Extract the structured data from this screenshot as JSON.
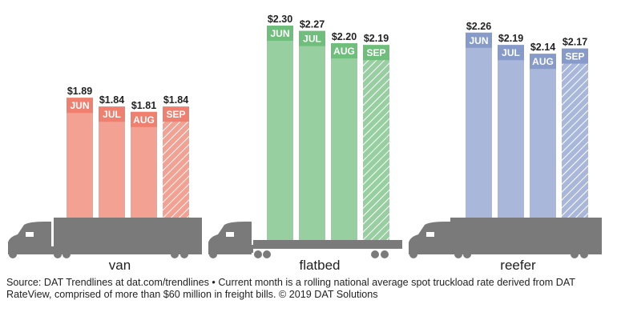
{
  "chart_data": {
    "type": "bar",
    "categories": [
      "JUN",
      "JUL",
      "AUG",
      "SEP"
    ],
    "series": [
      {
        "name": "van",
        "values": [
          1.89,
          1.84,
          1.81,
          1.84
        ],
        "labels": [
          "$1.89",
          "$1.84",
          "$1.81",
          "$1.84"
        ],
        "color": "#f3a193",
        "header_color": "#ef806f"
      },
      {
        "name": "flatbed",
        "values": [
          2.3,
          2.27,
          2.2,
          2.19
        ],
        "labels": [
          "$2.30",
          "$2.27",
          "$2.20",
          "$2.19"
        ],
        "color": "#97cfa0",
        "header_color": "#6fbe7b"
      },
      {
        "name": "reefer",
        "values": [
          2.26,
          2.19,
          2.14,
          2.17
        ],
        "labels": [
          "$2.26",
          "$2.19",
          "$2.14",
          "$2.17"
        ],
        "color": "#a9b8da",
        "header_color": "#879bcb"
      }
    ],
    "hatched_category": "SEP",
    "truck_color": "#7a7a7a"
  },
  "footer": {
    "source": "Source: DAT Trendlines at dat.com/trendlines • Current month is a rolling national average spot truckload rate derived from DAT RateView, comprised of more than $60 million in freight bills. © 2019 DAT Solutions"
  }
}
